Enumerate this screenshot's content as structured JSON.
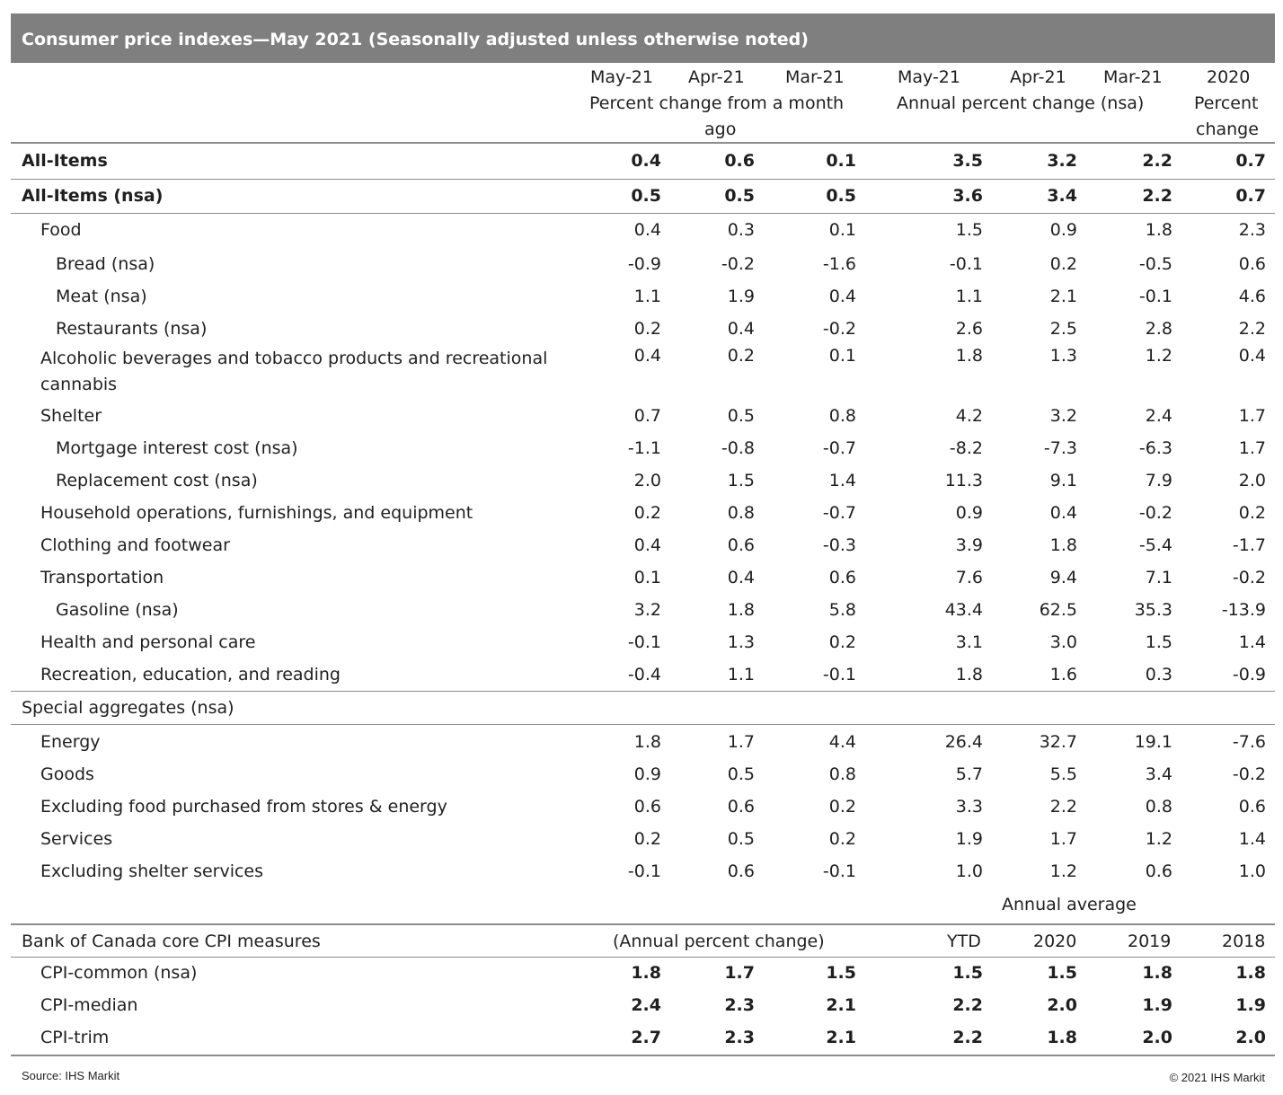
{
  "title": "Consumer price indexes—May 2021 (Seasonally adjusted unless otherwise noted)",
  "header": {
    "c1": "May-21",
    "c2": "Apr-21",
    "c3": "Mar-21",
    "c4": "May-21",
    "c5": "Apr-21",
    "c6": "Mar-21",
    "c7a": "2020",
    "c7b": "Percent",
    "c7c": "change",
    "group1a": "Percent change from a month",
    "group1b": "ago",
    "group2": "Annual percent change (nsa)"
  },
  "rows": [
    {
      "label": "All-Items",
      "v": [
        "0.4",
        "0.6",
        "0.1",
        "3.5",
        "3.2",
        "2.2",
        "0.7"
      ]
    },
    {
      "label": "All-Items (nsa)",
      "v": [
        "0.5",
        "0.5",
        "0.5",
        "3.6",
        "3.4",
        "2.2",
        "0.7"
      ]
    },
    {
      "label": "Food",
      "v": [
        "0.4",
        "0.3",
        "0.1",
        "1.5",
        "0.9",
        "1.8",
        "2.3"
      ]
    },
    {
      "label": "Bread (nsa)",
      "v": [
        "-0.9",
        "-0.2",
        "-1.6",
        "-0.1",
        "0.2",
        "-0.5",
        "0.6"
      ]
    },
    {
      "label": "Meat (nsa)",
      "v": [
        "1.1",
        "1.9",
        "0.4",
        "1.1",
        "2.1",
        "-0.1",
        "4.6"
      ]
    },
    {
      "label": "Restaurants (nsa)",
      "v": [
        "0.2",
        "0.4",
        "-0.2",
        "2.6",
        "2.5",
        "2.8",
        "2.2"
      ]
    },
    {
      "label": "Alcoholic beverages and tobacco products and recreational cannabis",
      "v": [
        "0.4",
        "0.2",
        "0.1",
        "1.8",
        "1.3",
        "1.2",
        "0.4"
      ]
    },
    {
      "label": "Shelter",
      "v": [
        "0.7",
        "0.5",
        "0.8",
        "4.2",
        "3.2",
        "2.4",
        "1.7"
      ]
    },
    {
      "label": "Mortgage interest cost (nsa)",
      "v": [
        "-1.1",
        "-0.8",
        "-0.7",
        "-8.2",
        "-7.3",
        "-6.3",
        "1.7"
      ]
    },
    {
      "label": "Replacement cost (nsa)",
      "v": [
        "2.0",
        "1.5",
        "1.4",
        "11.3",
        "9.1",
        "7.9",
        "2.0"
      ]
    },
    {
      "label": "Household operations, furnishings, and equipment",
      "v": [
        "0.2",
        "0.8",
        "-0.7",
        "0.9",
        "0.4",
        "-0.2",
        "0.2"
      ]
    },
    {
      "label": "Clothing and footwear",
      "v": [
        "0.4",
        "0.6",
        "-0.3",
        "3.9",
        "1.8",
        "-5.4",
        "-1.7"
      ]
    },
    {
      "label": "Transportation",
      "v": [
        "0.1",
        "0.4",
        "0.6",
        "7.6",
        "9.4",
        "7.1",
        "-0.2"
      ]
    },
    {
      "label": "Gasoline (nsa)",
      "v": [
        "3.2",
        "1.8",
        "5.8",
        "43.4",
        "62.5",
        "35.3",
        "-13.9"
      ]
    },
    {
      "label": "Health and personal care",
      "v": [
        "-0.1",
        "1.3",
        "0.2",
        "3.1",
        "3.0",
        "1.5",
        "1.4"
      ]
    },
    {
      "label": "Recreation, education, and reading",
      "v": [
        "-0.4",
        "1.1",
        "-0.1",
        "1.8",
        "1.6",
        "0.3",
        "-0.9"
      ]
    }
  ],
  "special_title": "Special aggregates (nsa)",
  "special": [
    {
      "label": "Energy",
      "v": [
        "1.8",
        "1.7",
        "4.4",
        "26.4",
        "32.7",
        "19.1",
        "-7.6"
      ]
    },
    {
      "label": "Goods",
      "v": [
        "0.9",
        "0.5",
        "0.8",
        "5.7",
        "5.5",
        "3.4",
        "-0.2"
      ]
    },
    {
      "label": "Excluding food purchased from stores & energy",
      "v": [
        "0.6",
        "0.6",
        "0.2",
        "3.3",
        "2.2",
        "0.8",
        "0.6"
      ]
    },
    {
      "label": "Services",
      "v": [
        "0.2",
        "0.5",
        "0.2",
        "1.9",
        "1.7",
        "1.2",
        "1.4"
      ]
    },
    {
      "label": "Excluding shelter services",
      "v": [
        "-0.1",
        "0.6",
        "-0.1",
        "1.0",
        "1.2",
        "0.6",
        "1.0"
      ]
    }
  ],
  "core": {
    "annual_average": "Annual average",
    "title": "Bank of Canada core CPI measures",
    "sub": "(Annual percent change)",
    "ytd": "YTD",
    "y1": "2020",
    "y2": "2019",
    "y3": "2018",
    "rows": [
      {
        "label": "CPI-common (nsa)",
        "v": [
          "1.8",
          "1.7",
          "1.5",
          "1.5",
          "1.5",
          "1.8",
          "1.8"
        ]
      },
      {
        "label": "CPI-median",
        "v": [
          "2.4",
          "2.3",
          "2.1",
          "2.2",
          "2.0",
          "1.9",
          "1.9"
        ]
      },
      {
        "label": "CPI-trim",
        "v": [
          "2.7",
          "2.3",
          "2.1",
          "2.2",
          "1.8",
          "2.0",
          "2.0"
        ]
      }
    ]
  },
  "source": "Source: IHS Markit",
  "copyright": "© 2021 IHS Markit"
}
